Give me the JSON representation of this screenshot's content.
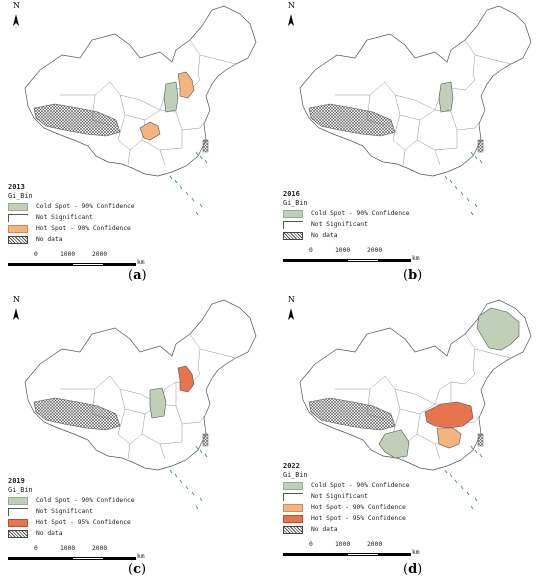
{
  "map_data": {
    "panels": [
      {
        "id": "a",
        "year": "2013",
        "caption_letter": "a",
        "legend_title": "Gi_Bin",
        "legend": [
          {
            "key": "cold",
            "label": "Cold Spot - 90% Confidence"
          },
          {
            "key": "ns",
            "label": "Not Significant"
          },
          {
            "key": "hot90",
            "label": "Hot Spot - 90% Confidence"
          },
          {
            "key": "nodata",
            "label": "No data"
          }
        ],
        "highlights": [
          {
            "region": "Shanxi",
            "class": "cold"
          },
          {
            "region": "Beijing-Tianjin-Hebei",
            "class": "hot90"
          },
          {
            "region": "Chongqing-Guizhou",
            "class": "hot90"
          },
          {
            "region": "Xizang",
            "class": "nodata"
          }
        ]
      },
      {
        "id": "b",
        "year": "2016",
        "caption_letter": "b",
        "legend_title": "Gi_Bin",
        "legend": [
          {
            "key": "cold",
            "label": "Cold Spot - 90% Confidence"
          },
          {
            "key": "ns",
            "label": "Not Significant"
          },
          {
            "key": "nodata",
            "label": "No data"
          }
        ],
        "highlights": [
          {
            "region": "Shanxi",
            "class": "cold"
          },
          {
            "region": "Xizang",
            "class": "nodata"
          }
        ]
      },
      {
        "id": "c",
        "year": "2019",
        "caption_letter": "c",
        "legend_title": "Gi_Bin",
        "legend": [
          {
            "key": "cold",
            "label": "Cold Spot - 90% Confidence"
          },
          {
            "key": "ns",
            "label": "Not Significant"
          },
          {
            "key": "hot95",
            "label": "Hot Spot - 95% Confidence"
          },
          {
            "key": "nodata",
            "label": "No data"
          }
        ],
        "highlights": [
          {
            "region": "Shaanxi",
            "class": "cold"
          },
          {
            "region": "Beijing-Tianjin-Hebei",
            "class": "hot95"
          },
          {
            "region": "Xizang",
            "class": "nodata"
          }
        ]
      },
      {
        "id": "d",
        "year": "2022",
        "caption_letter": "d",
        "legend_title": "Gi_Bin",
        "legend": [
          {
            "key": "cold",
            "label": "Cold Spot - 90% Confidence"
          },
          {
            "key": "ns",
            "label": "Not Significant"
          },
          {
            "key": "hot90",
            "label": "Hot Spot - 90% Confidence"
          },
          {
            "key": "hot95",
            "label": "Hot Spot - 95% Confidence"
          },
          {
            "key": "nodata",
            "label": "No data"
          }
        ],
        "highlights": [
          {
            "region": "Heilongjiang",
            "class": "cold"
          },
          {
            "region": "Yunnan",
            "class": "cold"
          },
          {
            "region": "Hubei-Anhui",
            "class": "hot95"
          },
          {
            "region": "Hunan-Jiangxi",
            "class": "hot90"
          },
          {
            "region": "Xizang",
            "class": "nodata"
          }
        ]
      }
    ],
    "north_label": "N",
    "scale": {
      "ticks": [
        "0",
        "1000",
        "2000"
      ],
      "unit": "km"
    },
    "colors": {
      "cold": "#c1cfb8",
      "hot90": "#f4b47e",
      "hot95": "#e7734f",
      "outline": "#555555"
    }
  }
}
